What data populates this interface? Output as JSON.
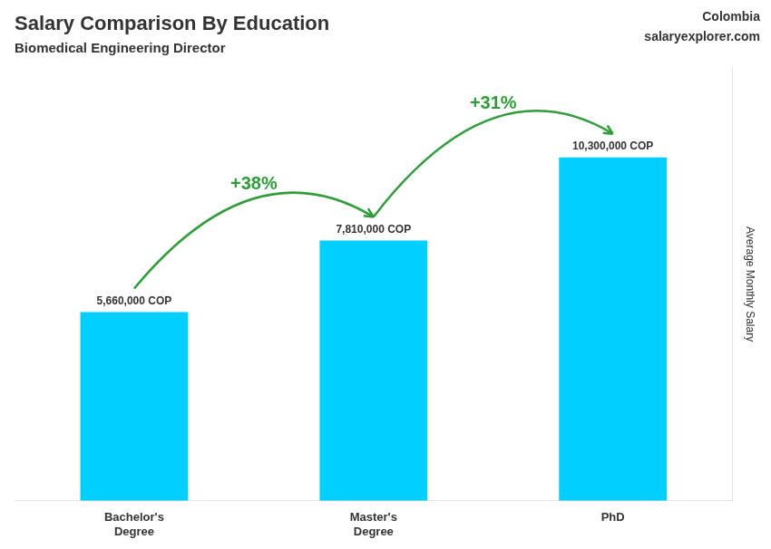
{
  "chart_data": {
    "type": "bar",
    "title": "Salary Comparison By Education",
    "subtitle": "Biomedical Engineering Director",
    "ylabel": "Average Monthly Salary",
    "categories": [
      "Bachelor's\nDegree",
      "Master's\nDegree",
      "PhD"
    ],
    "values": [
      5660000,
      7810000,
      10300000
    ],
    "value_labels": [
      "5,660,000 COP",
      "7,810,000 COP",
      "10,300,000 COP"
    ],
    "data_labels": true,
    "color": "#00cfff",
    "ylim": [
      0,
      13000000
    ],
    "tick_labels": "x",
    "grid": false,
    "annotations": [
      {
        "text": "+38%",
        "from": "Bachelor's\nDegree",
        "to": "Master's\nDegree"
      },
      {
        "text": "+31%",
        "from": "Master's\nDegree",
        "to": "PhD"
      },
      {
        "text": "Colombia"
      },
      {
        "text": "salaryexplorer.com"
      }
    ]
  }
}
